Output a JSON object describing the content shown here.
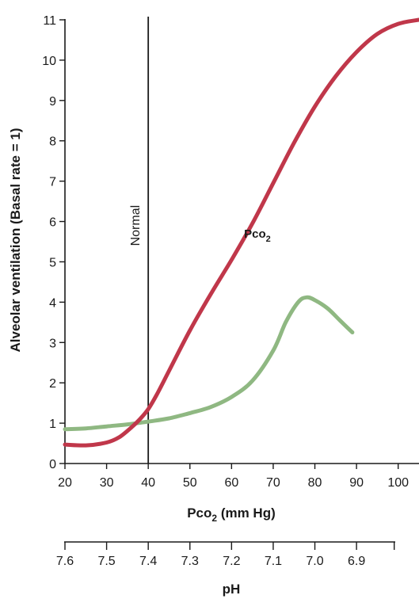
{
  "chart_data": {
    "type": "line",
    "xlabel": "Pco",
    "xlabel_sub": "2",
    "xlabel_suffix": " (mm Hg)",
    "ylabel": "Alveolar ventilation (Basal rate = 1)",
    "xlim": [
      20,
      105
    ],
    "ylim": [
      0,
      11
    ],
    "x_ticks": [
      20,
      30,
      40,
      50,
      60,
      70,
      80,
      90,
      100
    ],
    "y_ticks": [
      0,
      1,
      2,
      3,
      4,
      5,
      6,
      7,
      8,
      9,
      10,
      11
    ],
    "grid": false,
    "reference_line": {
      "x": 40,
      "label": "Normal"
    },
    "secondary_axis": {
      "label": "pH",
      "ticks": [
        {
          "label": "7.6",
          "x": 20
        },
        {
          "label": "7.5",
          "x": 30
        },
        {
          "label": "7.4",
          "x": 40
        },
        {
          "label": "7.3",
          "x": 50
        },
        {
          "label": "7.2",
          "x": 60
        },
        {
          "label": "7.1",
          "x": 70
        },
        {
          "label": "7.0",
          "x": 80
        },
        {
          "label": "6.9",
          "x": 90
        }
      ],
      "extra_tick_x": [
        100,
        105
      ]
    },
    "series": [
      {
        "name": "Pco",
        "name_sub": "2",
        "label_at": {
          "x": 63,
          "y": 5.6
        },
        "color": "#c0374a",
        "points": [
          [
            20,
            0.47
          ],
          [
            25,
            0.45
          ],
          [
            30,
            0.52
          ],
          [
            33,
            0.65
          ],
          [
            36,
            0.9
          ],
          [
            38,
            1.1
          ],
          [
            40,
            1.35
          ],
          [
            42,
            1.7
          ],
          [
            45,
            2.3
          ],
          [
            50,
            3.3
          ],
          [
            55,
            4.2
          ],
          [
            60,
            5.05
          ],
          [
            65,
            5.95
          ],
          [
            70,
            6.95
          ],
          [
            75,
            7.95
          ],
          [
            80,
            8.85
          ],
          [
            85,
            9.6
          ],
          [
            90,
            10.2
          ],
          [
            95,
            10.65
          ],
          [
            100,
            10.9
          ],
          [
            105,
            11.0
          ]
        ]
      },
      {
        "name": "pH",
        "color": "#8fb882",
        "points": [
          [
            20,
            0.85
          ],
          [
            25,
            0.87
          ],
          [
            30,
            0.92
          ],
          [
            35,
            0.97
          ],
          [
            40,
            1.04
          ],
          [
            45,
            1.12
          ],
          [
            50,
            1.25
          ],
          [
            55,
            1.4
          ],
          [
            60,
            1.65
          ],
          [
            65,
            2.05
          ],
          [
            70,
            2.8
          ],
          [
            73,
            3.5
          ],
          [
            76,
            4.0
          ],
          [
            78,
            4.12
          ],
          [
            80,
            4.05
          ],
          [
            83,
            3.85
          ],
          [
            86,
            3.55
          ],
          [
            89,
            3.25
          ]
        ]
      }
    ]
  }
}
